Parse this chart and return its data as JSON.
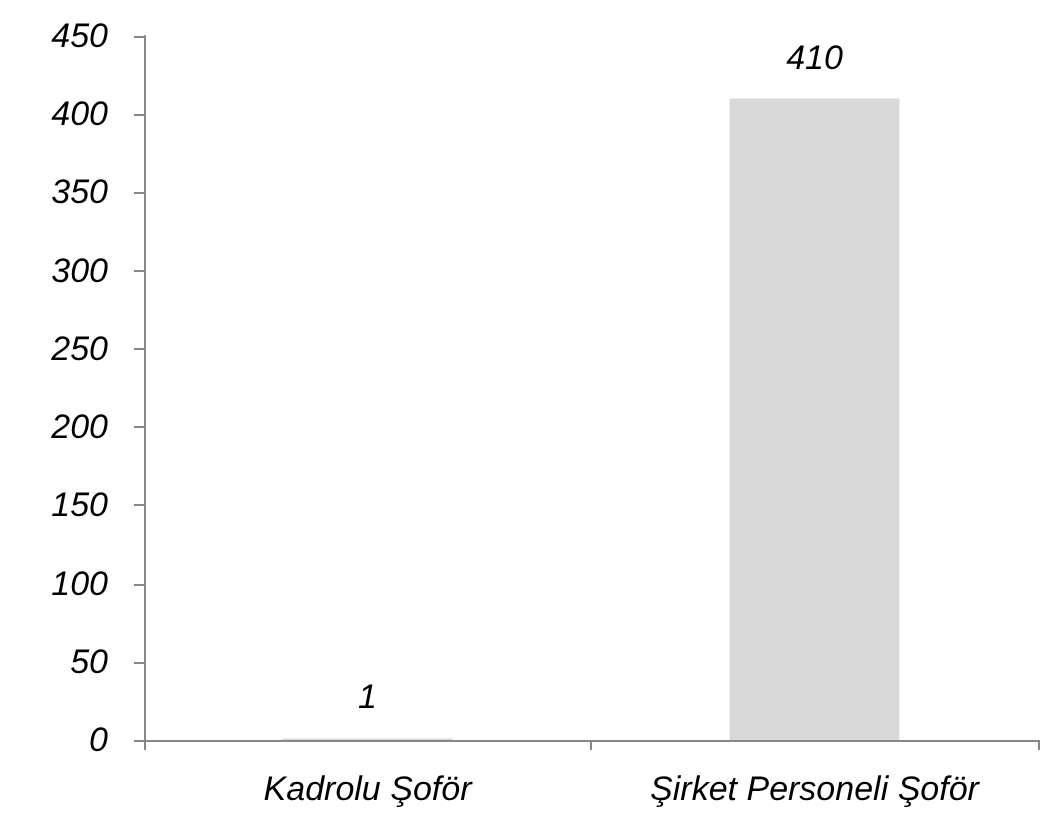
{
  "chart_data": {
    "type": "bar",
    "categories": [
      "Kadrolu Şoför",
      "Şirket Personeli Şoför"
    ],
    "values": [
      1,
      410
    ],
    "color": "#d9d9d9",
    "ylim": [
      0,
      450
    ],
    "yticks": [
      0,
      50,
      100,
      150,
      200,
      250,
      300,
      350,
      400,
      450
    ],
    "grid": false,
    "data_labels": true
  }
}
